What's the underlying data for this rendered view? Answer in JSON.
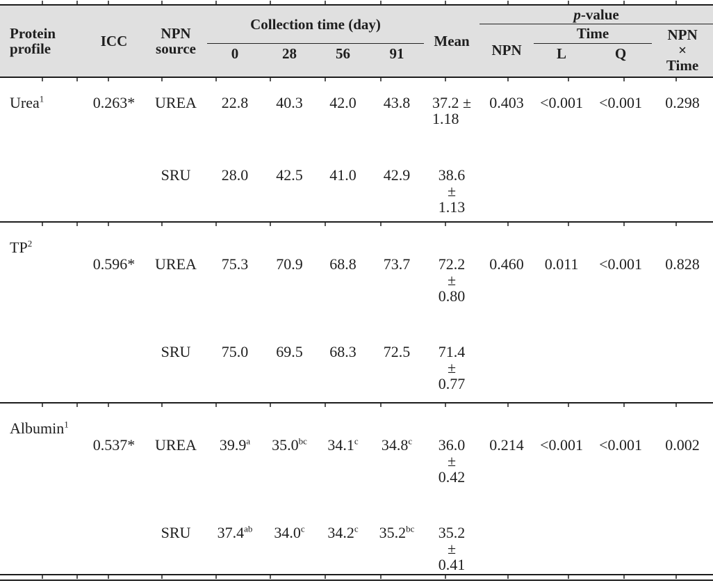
{
  "colors": {
    "header_bg": "#e0e0e0",
    "rule": "#1c1c1c",
    "text": "#1e1e1e"
  },
  "header": {
    "protein_profile": "Protein\nprofile",
    "icc": "ICC",
    "npn_source": "NPN\nsource",
    "collection_time": "Collection time (day)",
    "day0": "0",
    "day28": "28",
    "day56": "56",
    "day91": "91",
    "mean": "Mean",
    "p_value_italic": "p",
    "p_value_rest": "-value",
    "npn": "NPN",
    "time": "Time",
    "time_l": "L",
    "time_q": "Q",
    "npn_x_time": "NPN\n×\nTime"
  },
  "rows": [
    {
      "protein": {
        "v": "Urea",
        "s": "1"
      },
      "icc": "0.263*",
      "npn_source": "UREA",
      "d0": {
        "v": "22.8",
        "s": ""
      },
      "d28": {
        "v": "40.3",
        "s": ""
      },
      "d56": {
        "v": "42.0",
        "s": ""
      },
      "d91": {
        "v": "43.8",
        "s": ""
      },
      "mean": "37.2 ±\n1.18",
      "p_npn": "0.403",
      "p_l": "<0.001",
      "p_q": "<0.001",
      "p_npn_time": "0.298"
    },
    {
      "protein": {
        "v": "",
        "s": ""
      },
      "icc": "",
      "npn_source": "SRU",
      "d0": {
        "v": "28.0",
        "s": ""
      },
      "d28": {
        "v": "42.5",
        "s": ""
      },
      "d56": {
        "v": "41.0",
        "s": ""
      },
      "d91": {
        "v": "42.9",
        "s": ""
      },
      "mean": "38.6\n±\n1.13",
      "p_npn": "",
      "p_l": "",
      "p_q": "",
      "p_npn_time": ""
    },
    {
      "protein": {
        "v": "TP",
        "s": "2"
      },
      "icc": "0.596*",
      "npn_source": "UREA",
      "d0": {
        "v": "75.3",
        "s": ""
      },
      "d28": {
        "v": "70.9",
        "s": ""
      },
      "d56": {
        "v": "68.8",
        "s": ""
      },
      "d91": {
        "v": "73.7",
        "s": ""
      },
      "mean": "72.2\n±\n0.80",
      "p_npn": "0.460",
      "p_l": "0.011",
      "p_q": "<0.001",
      "p_npn_time": "0.828"
    },
    {
      "protein": {
        "v": "",
        "s": ""
      },
      "icc": "",
      "npn_source": "SRU",
      "d0": {
        "v": "75.0",
        "s": ""
      },
      "d28": {
        "v": "69.5",
        "s": ""
      },
      "d56": {
        "v": "68.3",
        "s": ""
      },
      "d91": {
        "v": "72.5",
        "s": ""
      },
      "mean": "71.4\n±\n0.77",
      "p_npn": "",
      "p_l": "",
      "p_q": "",
      "p_npn_time": ""
    },
    {
      "protein": {
        "v": "Albumin",
        "s": "1"
      },
      "icc": "0.537*",
      "npn_source": "UREA",
      "d0": {
        "v": "39.9",
        "s": "a"
      },
      "d28": {
        "v": "35.0",
        "s": "bc"
      },
      "d56": {
        "v": "34.1",
        "s": "c"
      },
      "d91": {
        "v": "34.8",
        "s": "c"
      },
      "mean": "36.0\n±\n0.42",
      "p_npn": "0.214",
      "p_l": "<0.001",
      "p_q": "<0.001",
      "p_npn_time": "0.002"
    },
    {
      "protein": {
        "v": "",
        "s": ""
      },
      "icc": "",
      "npn_source": "SRU",
      "d0": {
        "v": "37.4",
        "s": "ab"
      },
      "d28": {
        "v": "34.0",
        "s": "c"
      },
      "d56": {
        "v": "34.2",
        "s": "c"
      },
      "d91": {
        "v": "35.2",
        "s": "bc"
      },
      "mean": "35.2\n±\n0.41",
      "p_npn": "",
      "p_l": "",
      "p_q": "",
      "p_npn_time": ""
    }
  ]
}
